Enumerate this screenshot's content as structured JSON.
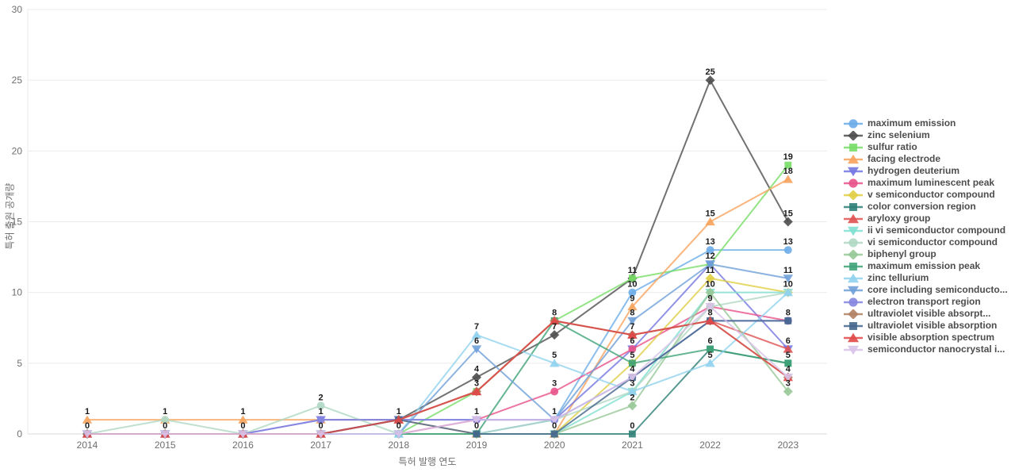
{
  "chart_data": {
    "type": "line",
    "title": "",
    "xlabel": "특허 발행 연도",
    "ylabel": "특허 출원 공개량",
    "ylim": [
      0,
      30
    ],
    "y_ticks": [
      0,
      5,
      10,
      15,
      20,
      25,
      30
    ],
    "grid": true,
    "legend_position": "right",
    "categories": [
      "2014",
      "2015",
      "2016",
      "2017",
      "2018",
      "2019",
      "2020",
      "2021",
      "2022",
      "2023"
    ],
    "series": [
      {
        "name": "maximum emission",
        "color": "#6BACE8",
        "marker": "circle",
        "values": [
          0,
          0,
          0,
          0,
          0,
          0,
          1,
          10,
          13,
          13
        ]
      },
      {
        "name": "zinc selenium",
        "color": "#4D4D4D",
        "marker": "diamond",
        "values": [
          0,
          0,
          0,
          0,
          1,
          4,
          7,
          11,
          25,
          15
        ]
      },
      {
        "name": "sulfur ratio",
        "color": "#77DD66",
        "marker": "square",
        "values": [
          0,
          0,
          0,
          0,
          0,
          3,
          8,
          11,
          12,
          19
        ]
      },
      {
        "name": "facing electrode",
        "color": "#F7A35C",
        "marker": "triangle-up",
        "values": [
          1,
          1,
          1,
          1,
          1,
          0,
          0,
          9,
          15,
          18
        ]
      },
      {
        "name": "hydrogen deuterium",
        "color": "#7377E0",
        "marker": "triangle-down",
        "values": [
          0,
          0,
          0,
          1,
          1,
          1,
          1,
          6,
          12,
          6
        ]
      },
      {
        "name": "maximum luminescent peak",
        "color": "#E8538A",
        "marker": "circle",
        "values": [
          0,
          0,
          0,
          0,
          0,
          1,
          3,
          6,
          9,
          8
        ]
      },
      {
        "name": "v semiconductor compound",
        "color": "#E0CE45",
        "marker": "diamond",
        "values": [
          0,
          0,
          0,
          0,
          0,
          0,
          0,
          5,
          11,
          10
        ]
      },
      {
        "name": "color conversion region",
        "color": "#2E8077",
        "marker": "square",
        "values": [
          0,
          0,
          0,
          0,
          0,
          0,
          0,
          0,
          6,
          5
        ]
      },
      {
        "name": "aryloxy group",
        "color": "#E05252",
        "marker": "triangle-up",
        "values": [
          0,
          0,
          0,
          0,
          1,
          3,
          8,
          7,
          8,
          6
        ]
      },
      {
        "name": "ii vi semiconductor compound",
        "color": "#7FE0D0",
        "marker": "triangle-down",
        "values": [
          0,
          0,
          0,
          0,
          0,
          0,
          0,
          3,
          10,
          10
        ]
      },
      {
        "name": "vi semiconductor compound",
        "color": "#AFD8C3",
        "marker": "circle",
        "values": [
          0,
          1,
          0,
          2,
          0,
          0,
          1,
          3,
          9,
          10
        ]
      },
      {
        "name": "biphenyl group",
        "color": "#97C897",
        "marker": "diamond",
        "values": [
          0,
          0,
          0,
          0,
          0,
          0,
          0,
          2,
          10,
          3
        ]
      },
      {
        "name": "maximum emission peak",
        "color": "#3FA377",
        "marker": "square",
        "values": [
          0,
          0,
          0,
          0,
          0,
          0,
          8,
          5,
          6,
          5
        ]
      },
      {
        "name": "zinc tellurium",
        "color": "#90D2EE",
        "marker": "triangle-up",
        "values": [
          0,
          0,
          0,
          0,
          0,
          7,
          5,
          3,
          5,
          10
        ]
      },
      {
        "name": "core including semiconducto...",
        "color": "#6FA0D8",
        "marker": "triangle-down",
        "values": [
          0,
          0,
          0,
          0,
          0,
          6,
          1,
          8,
          12,
          11
        ]
      },
      {
        "name": "electron transport region",
        "color": "#8585E0",
        "marker": "circle",
        "values": [
          0,
          0,
          0,
          1,
          1,
          1,
          1,
          4,
          8,
          8
        ]
      },
      {
        "name": "ultraviolet visible absorpt...",
        "color": "#B08163",
        "marker": "diamond",
        "values": [
          0,
          0,
          0,
          0,
          1,
          3,
          8,
          7,
          8,
          4
        ]
      },
      {
        "name": "ultraviolet visible absorption",
        "color": "#44668C",
        "marker": "square",
        "values": [
          0,
          0,
          0,
          0,
          1,
          0,
          0,
          4,
          8,
          8
        ]
      },
      {
        "name": "visible absorption spectrum",
        "color": "#E04848",
        "marker": "triangle-up",
        "values": [
          0,
          0,
          0,
          0,
          1,
          3,
          8,
          7,
          8,
          4
        ]
      },
      {
        "name": "semiconductor nanocrystal i...",
        "color": "#D8C2E8",
        "marker": "triangle-down",
        "values": [
          0,
          0,
          0,
          0,
          0,
          1,
          1,
          4,
          9,
          4
        ]
      }
    ]
  },
  "style": {
    "grid_color": "#ebebeb",
    "axis_line_color": "#d9d9d9",
    "tick_label_color": "#6e6e6e",
    "point_label_color": "#1a1a1a"
  }
}
